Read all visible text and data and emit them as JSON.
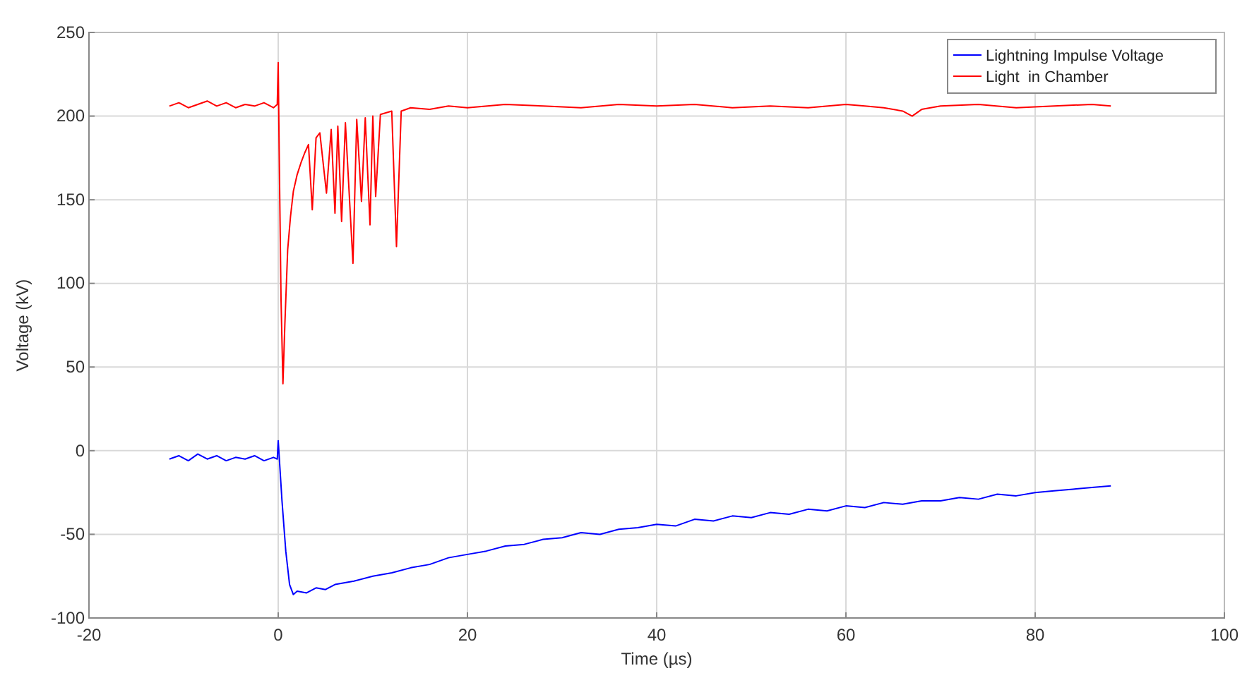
{
  "chart_data": {
    "type": "line",
    "xlabel": "Time (µs)",
    "ylabel": "Voltage (kV)",
    "xlim": [
      -20,
      100
    ],
    "ylim": [
      -100,
      250
    ],
    "xticks": [
      -20,
      0,
      20,
      40,
      60,
      80,
      100
    ],
    "yticks": [
      -100,
      -50,
      0,
      50,
      100,
      150,
      200,
      250
    ],
    "grid": true,
    "legend": "top right",
    "line_style": "solid",
    "marker": "none",
    "series": [
      {
        "name": "Lightning Impulse Voltage",
        "color": "#0000ff",
        "x": [
          -11.5,
          -10.5,
          -9.5,
          -8.5,
          -7.5,
          -6.5,
          -5.5,
          -4.5,
          -3.5,
          -2.5,
          -1.5,
          -0.5,
          -0.1,
          0,
          0.1,
          0.4,
          0.8,
          1.2,
          1.6,
          2,
          3,
          4,
          5,
          6,
          8,
          10,
          12,
          14,
          16,
          18,
          20,
          22,
          24,
          26,
          28,
          30,
          32,
          34,
          36,
          38,
          40,
          42,
          44,
          46,
          48,
          50,
          52,
          54,
          56,
          58,
          60,
          62,
          64,
          66,
          68,
          70,
          72,
          74,
          76,
          78,
          80,
          82,
          84,
          86,
          88
        ],
        "values": [
          -5,
          -3,
          -6,
          -2,
          -5,
          -3,
          -6,
          -4,
          -5,
          -3,
          -6,
          -4,
          -5,
          6,
          -3,
          -30,
          -60,
          -80,
          -86,
          -84,
          -85,
          -82,
          -83,
          -80,
          -78,
          -75,
          -73,
          -70,
          -68,
          -64,
          -62,
          -60,
          -57,
          -56,
          -53,
          -52,
          -49,
          -50,
          -47,
          -46,
          -44,
          -45,
          -41,
          -42,
          -39,
          -40,
          -37,
          -38,
          -35,
          -36,
          -33,
          -34,
          -31,
          -32,
          -30,
          -30,
          -28,
          -29,
          -26,
          -27,
          -25,
          -24,
          -23,
          -22,
          -21
        ]
      },
      {
        "name": "Light  in Chamber",
        "color": "#ff0000",
        "x": [
          -11.5,
          -10.5,
          -9.5,
          -8.5,
          -7.5,
          -6.5,
          -5.5,
          -4.5,
          -3.5,
          -2.5,
          -1.5,
          -0.5,
          -0.1,
          0,
          0.1,
          0.3,
          0.5,
          0.7,
          1,
          1.3,
          1.6,
          2,
          2.4,
          2.8,
          3.2,
          3.6,
          4,
          4.4,
          5.1,
          5.6,
          6,
          6.3,
          6.7,
          7.1,
          7.9,
          8.3,
          8.8,
          9.2,
          9.7,
          10,
          10.3,
          10.8,
          12,
          12.5,
          13,
          14,
          16,
          18,
          20,
          24,
          28,
          32,
          36,
          40,
          44,
          48,
          52,
          56,
          60,
          62,
          64,
          66,
          67,
          68,
          70,
          74,
          78,
          82,
          86,
          88
        ],
        "values": [
          206,
          208,
          205,
          207,
          209,
          206,
          208,
          205,
          207,
          206,
          208,
          205,
          207,
          232,
          180,
          90,
          40,
          75,
          120,
          140,
          155,
          165,
          172,
          178,
          183,
          144,
          187,
          190,
          154,
          192,
          142,
          194,
          137,
          196,
          112,
          198,
          149,
          199,
          135,
          200,
          152,
          201,
          203,
          122,
          203,
          205,
          204,
          206,
          205,
          207,
          206,
          205,
          207,
          206,
          207,
          205,
          206,
          205,
          207,
          206,
          205,
          203,
          200,
          204,
          206,
          207,
          205,
          206,
          207,
          206
        ]
      }
    ]
  }
}
